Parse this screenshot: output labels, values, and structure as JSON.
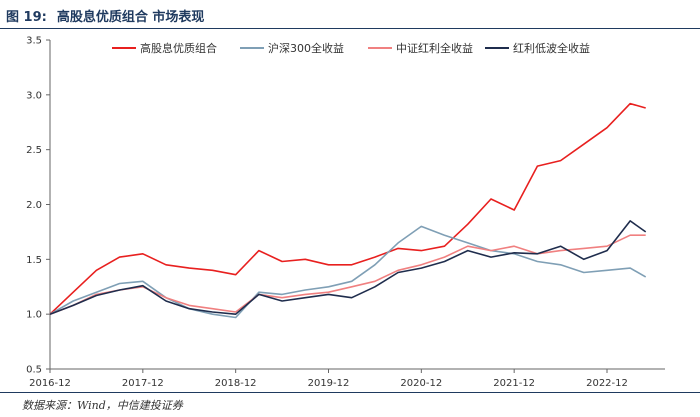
{
  "figure": {
    "number": "图 19:",
    "title": "高股息优质组合 市场表现",
    "source": "数据来源：Wind，中信建投证券"
  },
  "chart_data": {
    "type": "line",
    "x": [
      "2016-12",
      "2017-03",
      "2017-06",
      "2017-09",
      "2017-12",
      "2018-03",
      "2018-06",
      "2018-09",
      "2018-12",
      "2019-03",
      "2019-06",
      "2019-09",
      "2019-12",
      "2020-03",
      "2020-06",
      "2020-09",
      "2020-12",
      "2021-03",
      "2021-06",
      "2021-09",
      "2021-12",
      "2022-03",
      "2022-06",
      "2022-09",
      "2022-12",
      "2023-03",
      "2023-05"
    ],
    "x_ticks": [
      "2016-12",
      "2017-12",
      "2018-12",
      "2019-12",
      "2020-12",
      "2021-12",
      "2022-12"
    ],
    "ylim": [
      0.5,
      3.5
    ],
    "y_ticks": [
      "0.5",
      "1.0",
      "1.5",
      "2.0",
      "2.5",
      "3.0",
      "3.5"
    ],
    "grid": false,
    "legend": "top",
    "series": [
      {
        "name": "高股息优质组合",
        "color": "#e8201f",
        "values": [
          1.0,
          1.2,
          1.4,
          1.52,
          1.55,
          1.45,
          1.42,
          1.4,
          1.36,
          1.58,
          1.48,
          1.5,
          1.45,
          1.45,
          1.52,
          1.6,
          1.58,
          1.62,
          1.82,
          2.05,
          1.95,
          2.35,
          2.4,
          2.55,
          2.7,
          2.92,
          2.88
        ]
      },
      {
        "name": "沪深300全收益",
        "color": "#7f9fb5",
        "values": [
          1.0,
          1.12,
          1.2,
          1.28,
          1.3,
          1.15,
          1.05,
          1.0,
          0.97,
          1.2,
          1.18,
          1.22,
          1.25,
          1.3,
          1.45,
          1.65,
          1.8,
          1.72,
          1.65,
          1.58,
          1.55,
          1.48,
          1.45,
          1.38,
          1.4,
          1.42,
          1.34
        ]
      },
      {
        "name": "中证红利全收益",
        "color": "#f08080",
        "values": [
          1.0,
          1.08,
          1.18,
          1.22,
          1.25,
          1.15,
          1.08,
          1.05,
          1.02,
          1.18,
          1.15,
          1.18,
          1.2,
          1.25,
          1.3,
          1.4,
          1.45,
          1.52,
          1.62,
          1.58,
          1.62,
          1.55,
          1.58,
          1.6,
          1.62,
          1.72,
          1.72
        ]
      },
      {
        "name": "红利低波全收益",
        "color": "#1f2d4d",
        "values": [
          1.0,
          1.08,
          1.17,
          1.22,
          1.26,
          1.12,
          1.05,
          1.02,
          1.0,
          1.18,
          1.12,
          1.15,
          1.18,
          1.15,
          1.25,
          1.38,
          1.42,
          1.48,
          1.58,
          1.52,
          1.56,
          1.55,
          1.62,
          1.5,
          1.58,
          1.85,
          1.75
        ]
      }
    ]
  }
}
